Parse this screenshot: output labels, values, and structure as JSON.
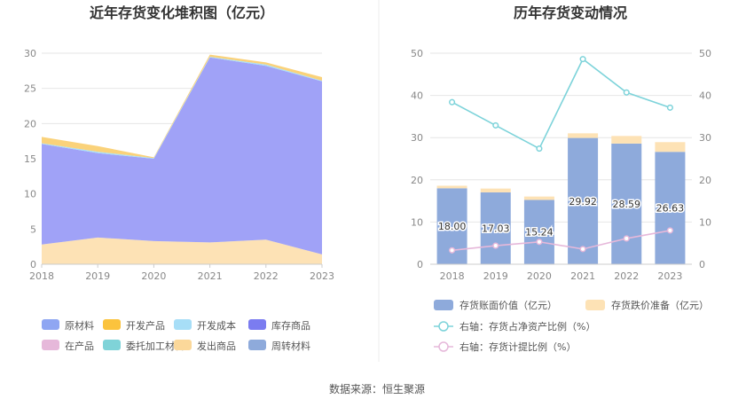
{
  "left_chart": {
    "title": "近年存货变化堆积图（亿元）",
    "chart_data": {
      "type": "area",
      "stacked": true,
      "title": "近年存货变化堆积图（亿元）",
      "x": [
        "2018",
        "2019",
        "2020",
        "2021",
        "2022",
        "2023"
      ],
      "ylim": [
        0,
        30
      ],
      "yticks": [
        "0",
        "5",
        "10",
        "15",
        "20",
        "25",
        "30"
      ],
      "grid": true,
      "legend_position": "bottom",
      "legend": [
        "原材料",
        "开发产品",
        "开发成本",
        "库存商品",
        "在产品",
        "委托加工材料",
        "发出商品",
        "周转材料"
      ],
      "series": [
        {
          "name": "发出商品",
          "color": "#fde2b5",
          "values": [
            2.8,
            3.8,
            3.3,
            3.1,
            3.5,
            1.4
          ]
        },
        {
          "name": "库存商品",
          "color": "#a0a2f7",
          "values": [
            14.3,
            12.0,
            11.7,
            26.3,
            24.7,
            24.6
          ]
        },
        {
          "name": "开发成本",
          "color": "#a8def7",
          "values": [
            0.1,
            0.2,
            0.1,
            0.1,
            0.2,
            0.1
          ]
        },
        {
          "name": "开发产品",
          "color": "#fad27a",
          "values": [
            0.9,
            0.8,
            0.1,
            0.3,
            0.3,
            0.5
          ]
        }
      ]
    },
    "legend_items": [
      {
        "label": "原材料",
        "color": "#8fa6f2"
      },
      {
        "label": "开发产品",
        "color": "#fbc33d"
      },
      {
        "label": "开发成本",
        "color": "#a7def7"
      },
      {
        "label": "库存商品",
        "color": "#7b7cf0"
      },
      {
        "label": "在产品",
        "color": "#e6b8da"
      },
      {
        "label": "委托加工材料",
        "color": "#7fd3d8"
      },
      {
        "label": "发出商品",
        "color": "#fbd89a"
      },
      {
        "label": "周转材料",
        "color": "#8eaadb"
      }
    ]
  },
  "right_chart": {
    "title": "历年存货变动情况",
    "chart_data": {
      "type": "bar",
      "title": "历年存货变动情况",
      "categories": [
        "2018",
        "2019",
        "2020",
        "2021",
        "2022",
        "2023"
      ],
      "ylim": [
        0,
        50
      ],
      "yticks": [
        "0",
        "10",
        "20",
        "30",
        "40",
        "50"
      ],
      "y2lim": [
        0,
        50
      ],
      "y2ticks": [
        "0",
        "10",
        "20",
        "30",
        "40",
        "50"
      ],
      "grid": true,
      "legend_position": "bottom",
      "series": [
        {
          "name": "存货账面价值（亿元）",
          "type": "bar",
          "stack": "inv",
          "color": "#8eaadb",
          "values": [
            18.0,
            17.03,
            15.24,
            29.92,
            28.59,
            26.63
          ],
          "labels": [
            "18.00",
            "17.03",
            "15.24",
            "29.92",
            "28.59",
            "26.63"
          ]
        },
        {
          "name": "存货跌价准备（亿元）",
          "type": "bar",
          "stack": "inv",
          "color": "#fde2b5",
          "values": [
            0.6,
            0.9,
            0.8,
            1.1,
            1.8,
            2.3
          ]
        },
        {
          "name": "右轴：存货占净资产比例（%）",
          "type": "line",
          "axis": "right",
          "color": "#7dd3da",
          "values": [
            38.4,
            32.9,
            27.4,
            48.6,
            40.7,
            37.1
          ]
        },
        {
          "name": "右轴：存货计提比例（%）",
          "type": "line",
          "axis": "right",
          "color": "#e6b8da",
          "values": [
            3.3,
            4.4,
            5.3,
            3.6,
            6.1,
            8.0
          ]
        }
      ]
    },
    "legend_items": [
      {
        "label": "存货账面价值（亿元）",
        "color": "#8eaadb",
        "kind": "bar"
      },
      {
        "label": "存货跌价准备（亿元）",
        "color": "#fde2b5",
        "kind": "bar"
      },
      {
        "label": "右轴：存货占净资产比例（%）",
        "color": "#7dd3da",
        "kind": "line"
      },
      {
        "label": "右轴：存货计提比例（%）",
        "color": "#e6b8da",
        "kind": "line"
      }
    ]
  },
  "footer": {
    "source": "数据来源：恒生聚源"
  }
}
